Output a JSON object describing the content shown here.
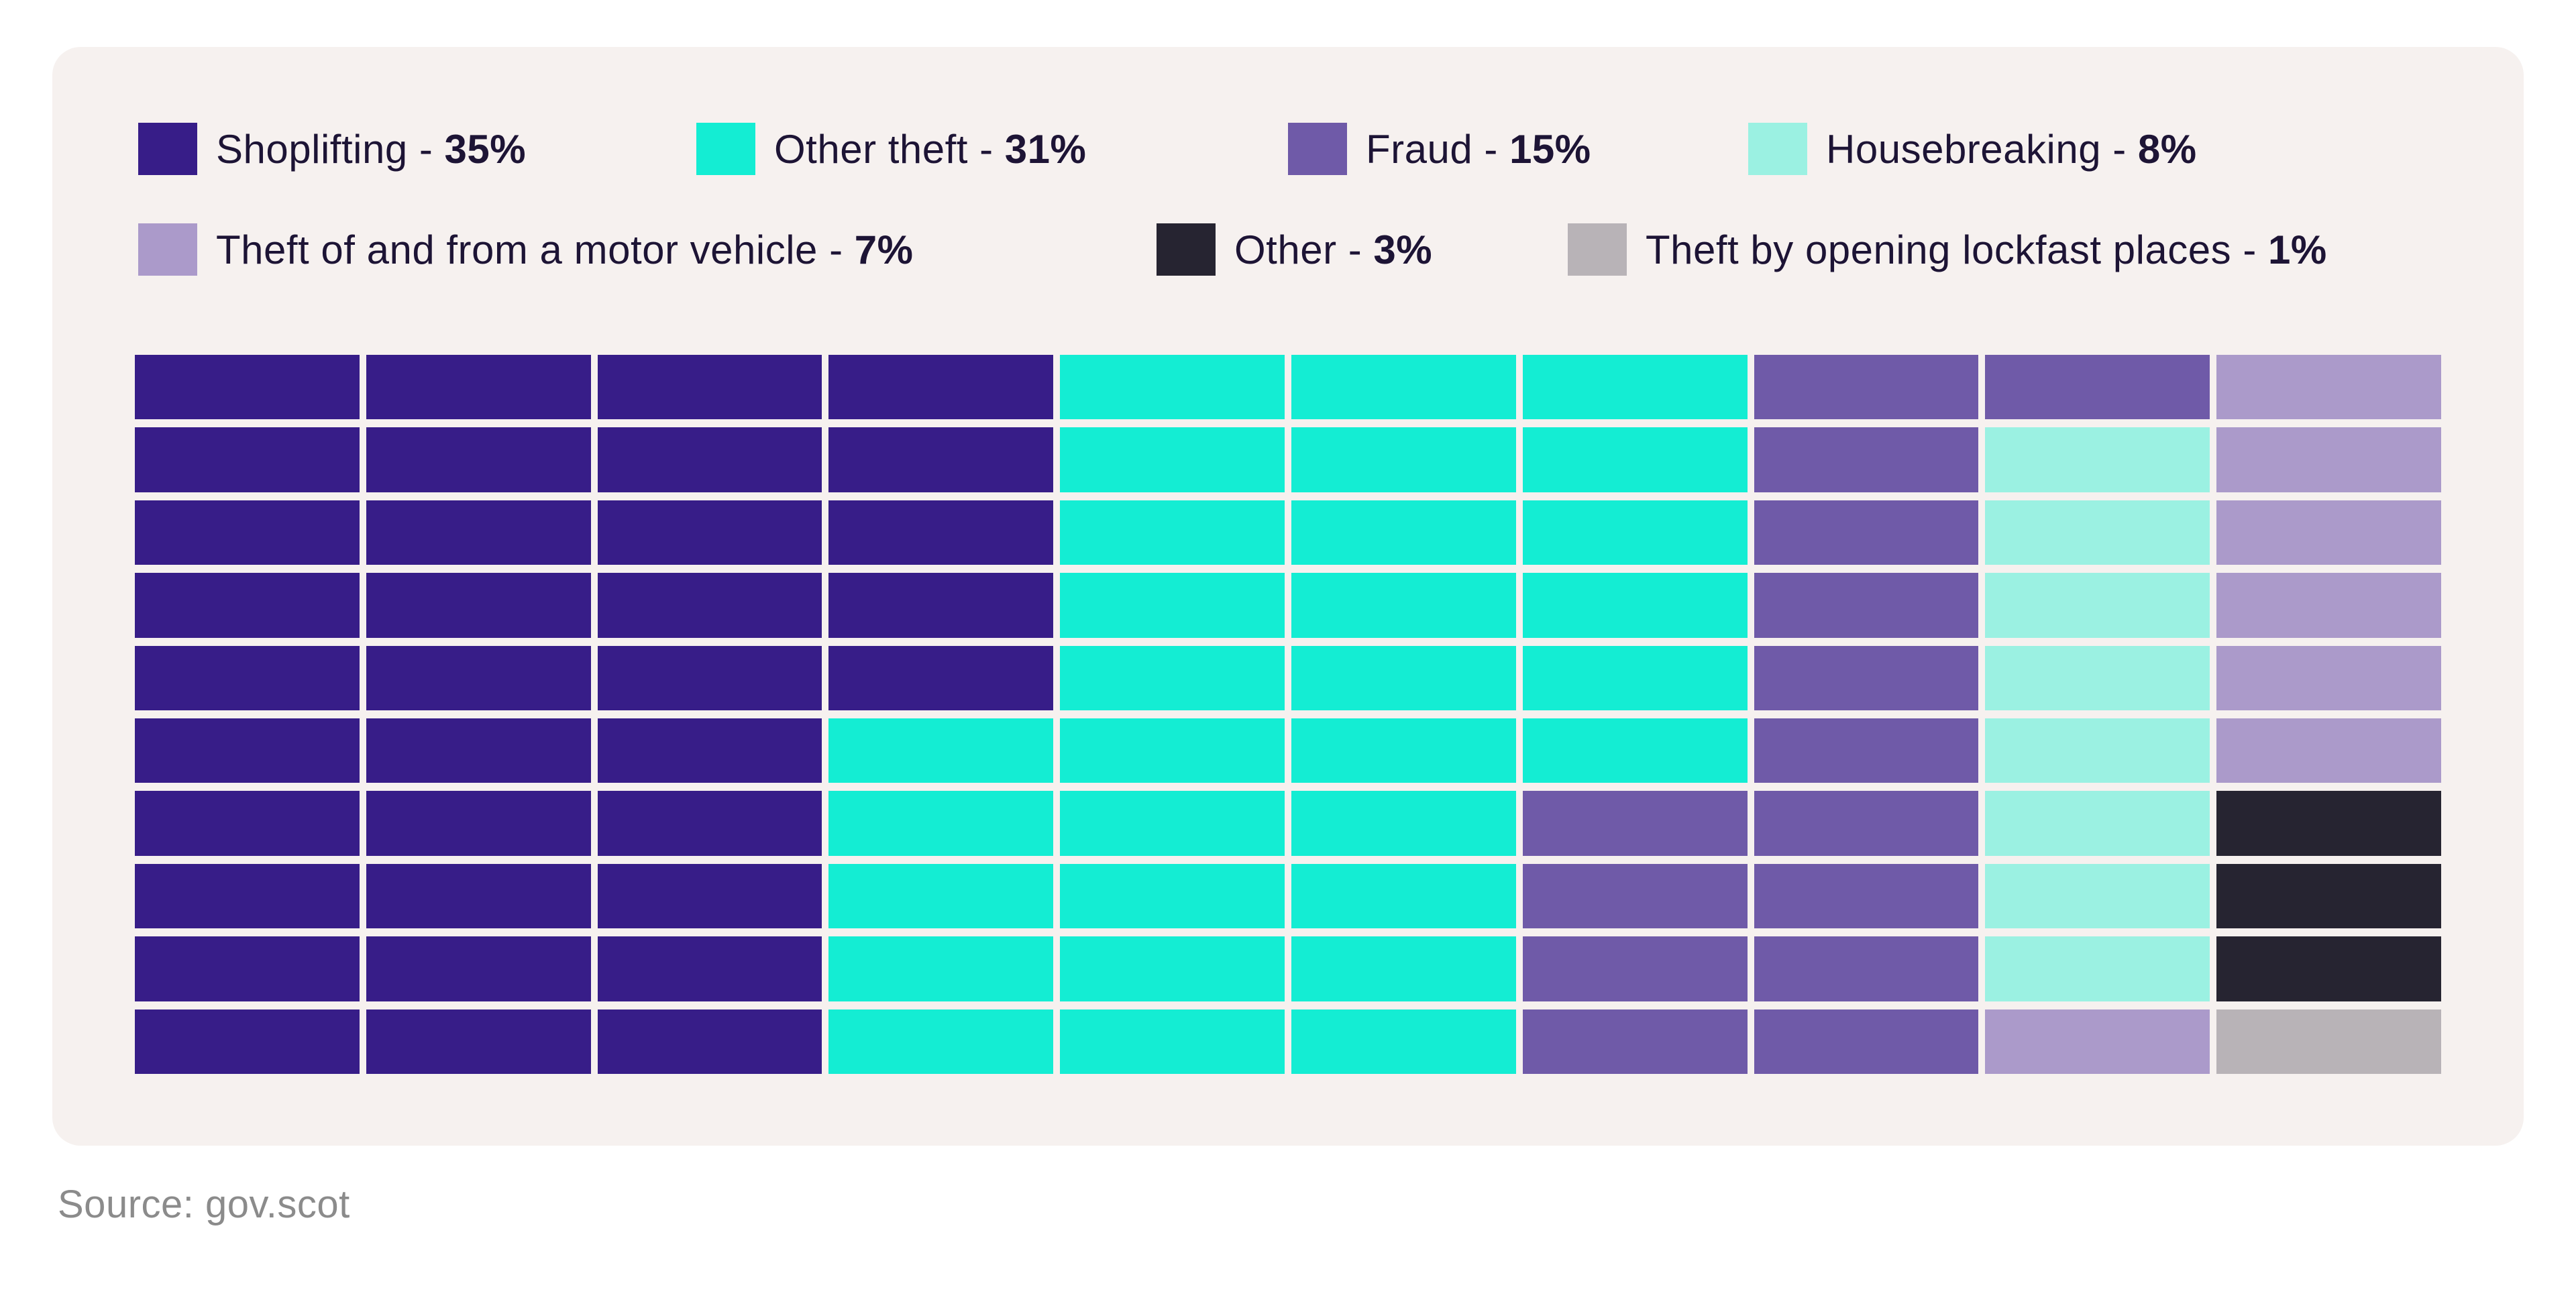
{
  "panel": {
    "background": "#f6f1ef"
  },
  "legend": {
    "separator": " - ",
    "rows": [
      [
        0,
        1,
        2,
        3
      ],
      [
        4,
        5,
        6
      ]
    ]
  },
  "source": {
    "text": "Source: gov.scot"
  },
  "chart_data": {
    "type": "waffle",
    "title": "",
    "rows": 10,
    "cols": 10,
    "unit_percent_per_cell": 1,
    "fill_order": "column-major, top-to-bottom, columns left-to-right",
    "legend_position": "top",
    "series": [
      {
        "label": "Shoplifting",
        "pct": "35%",
        "value": 35,
        "code": "S",
        "color": "#371d88"
      },
      {
        "label": "Other theft",
        "pct": "31%",
        "value": 31,
        "code": "T",
        "color": "#14edd3"
      },
      {
        "label": "Fraud",
        "pct": "15%",
        "value": 15,
        "code": "F",
        "color": "#6f5aa8"
      },
      {
        "label": "Housebreaking",
        "pct": "8%",
        "value": 8,
        "code": "H",
        "color": "#9bf1e2"
      },
      {
        "label": "Theft of and from a motor vehicle",
        "pct": "7%",
        "value": 7,
        "code": "M",
        "color": "#ab9aca"
      },
      {
        "label": "Other",
        "pct": "3%",
        "value": 3,
        "code": "O",
        "color": "#262431"
      },
      {
        "label": "Theft by opening lockfast places",
        "pct": "1%",
        "value": 1,
        "code": "L",
        "color": "#b8b3b7"
      }
    ],
    "grid": [
      [
        "S",
        "S",
        "S",
        "S",
        "T",
        "T",
        "T",
        "F",
        "F",
        "M"
      ],
      [
        "S",
        "S",
        "S",
        "S",
        "T",
        "T",
        "T",
        "F",
        "H",
        "M"
      ],
      [
        "S",
        "S",
        "S",
        "S",
        "T",
        "T",
        "T",
        "F",
        "H",
        "M"
      ],
      [
        "S",
        "S",
        "S",
        "S",
        "T",
        "T",
        "T",
        "F",
        "H",
        "M"
      ],
      [
        "S",
        "S",
        "S",
        "S",
        "T",
        "T",
        "T",
        "F",
        "H",
        "M"
      ],
      [
        "S",
        "S",
        "S",
        "T",
        "T",
        "T",
        "T",
        "F",
        "H",
        "M"
      ],
      [
        "S",
        "S",
        "S",
        "T",
        "T",
        "T",
        "F",
        "F",
        "H",
        "O"
      ],
      [
        "S",
        "S",
        "S",
        "T",
        "T",
        "T",
        "F",
        "F",
        "H",
        "O"
      ],
      [
        "S",
        "S",
        "S",
        "T",
        "T",
        "T",
        "F",
        "F",
        "H",
        "O"
      ],
      [
        "S",
        "S",
        "S",
        "T",
        "T",
        "T",
        "F",
        "F",
        "M",
        "L"
      ]
    ]
  }
}
